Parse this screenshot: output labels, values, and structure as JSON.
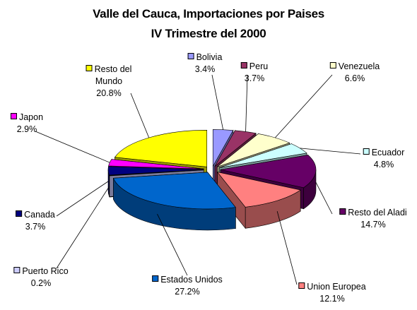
{
  "chart_data": {
    "type": "pie3d",
    "title": "Valle del Cauca, Importaciones por Paises",
    "subtitle": "IV Trimestre del 2000",
    "categories": [
      "Bolivia",
      "Peru",
      "Venezuela",
      "Ecuador",
      "Resto del Aladi",
      "Union Europea",
      "Estados Unidos",
      "Puerto Rico",
      "Canada",
      "Japon",
      "Resto del Mundo"
    ],
    "values": [
      3.4,
      3.7,
      6.6,
      4.8,
      14.7,
      12.1,
      27.2,
      0.2,
      3.7,
      2.9,
      20.8
    ],
    "value_labels": [
      "3.4%",
      "3.7%",
      "6.6%",
      "4.8%",
      "14.7%",
      "12.1%",
      "27.2%",
      "0.2%",
      "3.7%",
      "2.9%",
      "20.8%"
    ],
    "colors": [
      "#9999ff",
      "#993366",
      "#ffffcc",
      "#ccffff",
      "#660066",
      "#ff8080",
      "#0066cc",
      "#ccccff",
      "#000080",
      "#ff00ff",
      "#ffff00"
    ]
  }
}
